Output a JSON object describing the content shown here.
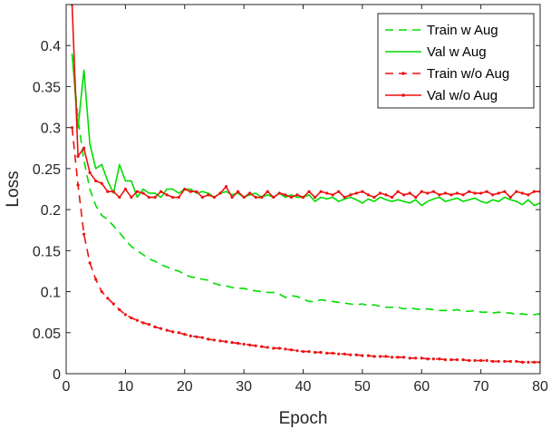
{
  "chart_data": {
    "type": "line",
    "title": "",
    "xlabel": "Epoch",
    "ylabel": "Loss",
    "xlim": [
      0,
      80
    ],
    "ylim": [
      0,
      0.45
    ],
    "xticks": [
      "0",
      "10",
      "20",
      "30",
      "40",
      "50",
      "60",
      "70",
      "80"
    ],
    "yticks": [
      "0",
      "0.05",
      "0.1",
      "0.15",
      "0.2",
      "0.25",
      "0.3",
      "0.35",
      "0.4"
    ],
    "xtick_values": [
      0,
      10,
      20,
      30,
      40,
      50,
      60,
      70,
      80
    ],
    "ytick_values": [
      0,
      0.05,
      0.1,
      0.15,
      0.2,
      0.25,
      0.3,
      0.35,
      0.4
    ],
    "grid": false,
    "legend_position": "top-right",
    "series": [
      {
        "name": "Train w Aug",
        "color": "#00dd00",
        "style": "dashed",
        "marker": "none",
        "x": [
          1,
          2,
          3,
          4,
          5,
          6,
          7,
          8,
          9,
          10,
          11,
          12,
          13,
          14,
          15,
          16,
          17,
          18,
          19,
          20,
          21,
          22,
          23,
          24,
          25,
          26,
          27,
          28,
          29,
          30,
          31,
          32,
          33,
          34,
          35,
          36,
          37,
          38,
          39,
          40,
          41,
          42,
          43,
          44,
          45,
          46,
          47,
          48,
          49,
          50,
          51,
          52,
          53,
          54,
          55,
          56,
          57,
          58,
          59,
          60,
          61,
          62,
          63,
          64,
          65,
          66,
          67,
          68,
          69,
          70,
          71,
          72,
          73,
          74,
          75,
          76,
          77,
          78,
          79,
          80
        ],
        "y": [
          0.39,
          0.31,
          0.26,
          0.225,
          0.205,
          0.193,
          0.188,
          0.18,
          0.172,
          0.163,
          0.155,
          0.15,
          0.145,
          0.14,
          0.137,
          0.133,
          0.13,
          0.127,
          0.125,
          0.121,
          0.118,
          0.117,
          0.115,
          0.114,
          0.11,
          0.108,
          0.107,
          0.105,
          0.104,
          0.104,
          0.102,
          0.101,
          0.1,
          0.099,
          0.099,
          0.097,
          0.093,
          0.095,
          0.094,
          0.091,
          0.088,
          0.088,
          0.09,
          0.089,
          0.088,
          0.087,
          0.086,
          0.085,
          0.084,
          0.085,
          0.083,
          0.084,
          0.082,
          0.081,
          0.081,
          0.081,
          0.079,
          0.08,
          0.079,
          0.078,
          0.079,
          0.078,
          0.077,
          0.077,
          0.077,
          0.078,
          0.076,
          0.076,
          0.077,
          0.075,
          0.075,
          0.074,
          0.075,
          0.074,
          0.074,
          0.072,
          0.073,
          0.072,
          0.072,
          0.073
        ]
      },
      {
        "name": "Val w Aug",
        "color": "#00dd00",
        "style": "solid",
        "marker": "none",
        "x": [
          1,
          2,
          3,
          4,
          5,
          6,
          7,
          8,
          9,
          10,
          11,
          12,
          13,
          14,
          15,
          16,
          17,
          18,
          19,
          20,
          21,
          22,
          23,
          24,
          25,
          26,
          27,
          28,
          29,
          30,
          31,
          32,
          33,
          34,
          35,
          36,
          37,
          38,
          39,
          40,
          41,
          42,
          43,
          44,
          45,
          46,
          47,
          48,
          49,
          50,
          51,
          52,
          53,
          54,
          55,
          56,
          57,
          58,
          59,
          60,
          61,
          62,
          63,
          64,
          65,
          66,
          67,
          68,
          69,
          70,
          71,
          72,
          73,
          74,
          75,
          76,
          77,
          78,
          79,
          80
        ],
        "y": [
          0.39,
          0.3,
          0.37,
          0.28,
          0.25,
          0.255,
          0.235,
          0.22,
          0.255,
          0.235,
          0.235,
          0.215,
          0.225,
          0.22,
          0.22,
          0.215,
          0.225,
          0.225,
          0.22,
          0.225,
          0.225,
          0.22,
          0.222,
          0.22,
          0.215,
          0.22,
          0.222,
          0.218,
          0.22,
          0.215,
          0.218,
          0.22,
          0.215,
          0.218,
          0.215,
          0.22,
          0.215,
          0.218,
          0.215,
          0.215,
          0.218,
          0.21,
          0.215,
          0.213,
          0.215,
          0.21,
          0.213,
          0.215,
          0.212,
          0.208,
          0.213,
          0.21,
          0.215,
          0.212,
          0.21,
          0.212,
          0.21,
          0.208,
          0.212,
          0.205,
          0.21,
          0.213,
          0.215,
          0.21,
          0.212,
          0.214,
          0.21,
          0.212,
          0.214,
          0.21,
          0.208,
          0.212,
          0.21,
          0.215,
          0.212,
          0.21,
          0.206,
          0.212,
          0.205,
          0.208
        ]
      },
      {
        "name": "Train w/o Aug",
        "color": "#ee1111",
        "style": "dashed",
        "marker": "dot",
        "x": [
          1,
          2,
          3,
          4,
          5,
          6,
          7,
          8,
          9,
          10,
          11,
          12,
          13,
          14,
          15,
          16,
          17,
          18,
          19,
          20,
          21,
          22,
          23,
          24,
          25,
          26,
          27,
          28,
          29,
          30,
          31,
          32,
          33,
          34,
          35,
          36,
          37,
          38,
          39,
          40,
          41,
          42,
          43,
          44,
          45,
          46,
          47,
          48,
          49,
          50,
          51,
          52,
          53,
          54,
          55,
          56,
          57,
          58,
          59,
          60,
          61,
          62,
          63,
          64,
          65,
          66,
          67,
          68,
          69,
          70,
          71,
          72,
          73,
          74,
          75,
          76,
          77,
          78,
          79,
          80
        ],
        "y": [
          0.3,
          0.23,
          0.17,
          0.135,
          0.115,
          0.1,
          0.092,
          0.085,
          0.078,
          0.072,
          0.068,
          0.065,
          0.062,
          0.06,
          0.057,
          0.055,
          0.053,
          0.051,
          0.05,
          0.048,
          0.046,
          0.045,
          0.044,
          0.042,
          0.041,
          0.04,
          0.039,
          0.038,
          0.037,
          0.036,
          0.035,
          0.034,
          0.033,
          0.032,
          0.031,
          0.031,
          0.03,
          0.029,
          0.028,
          0.027,
          0.027,
          0.026,
          0.026,
          0.025,
          0.025,
          0.024,
          0.024,
          0.023,
          0.023,
          0.022,
          0.022,
          0.021,
          0.021,
          0.021,
          0.02,
          0.02,
          0.02,
          0.019,
          0.019,
          0.019,
          0.018,
          0.018,
          0.018,
          0.017,
          0.017,
          0.017,
          0.017,
          0.016,
          0.016,
          0.016,
          0.016,
          0.015,
          0.015,
          0.015,
          0.015,
          0.015,
          0.014,
          0.014,
          0.014,
          0.014
        ]
      },
      {
        "name": "Val w/o Aug",
        "color": "#ee1111",
        "style": "solid",
        "marker": "dot",
        "x": [
          1,
          2,
          3,
          4,
          5,
          6,
          7,
          8,
          9,
          10,
          11,
          12,
          13,
          14,
          15,
          16,
          17,
          18,
          19,
          20,
          21,
          22,
          23,
          24,
          25,
          26,
          27,
          28,
          29,
          30,
          31,
          32,
          33,
          34,
          35,
          36,
          37,
          38,
          39,
          40,
          41,
          42,
          43,
          44,
          45,
          46,
          47,
          48,
          49,
          50,
          51,
          52,
          53,
          54,
          55,
          56,
          57,
          58,
          59,
          60,
          61,
          62,
          63,
          64,
          65,
          66,
          67,
          68,
          69,
          70,
          71,
          72,
          73,
          74,
          75,
          76,
          77,
          78,
          79,
          80
        ],
        "y": [
          0.45,
          0.265,
          0.275,
          0.245,
          0.235,
          0.232,
          0.222,
          0.222,
          0.215,
          0.225,
          0.215,
          0.222,
          0.22,
          0.215,
          0.215,
          0.222,
          0.218,
          0.215,
          0.215,
          0.225,
          0.222,
          0.222,
          0.215,
          0.218,
          0.215,
          0.22,
          0.228,
          0.215,
          0.222,
          0.215,
          0.22,
          0.215,
          0.215,
          0.222,
          0.215,
          0.22,
          0.218,
          0.215,
          0.218,
          0.215,
          0.222,
          0.215,
          0.222,
          0.22,
          0.218,
          0.222,
          0.215,
          0.218,
          0.22,
          0.222,
          0.218,
          0.215,
          0.22,
          0.218,
          0.215,
          0.222,
          0.218,
          0.22,
          0.215,
          0.222,
          0.22,
          0.222,
          0.218,
          0.22,
          0.218,
          0.22,
          0.218,
          0.222,
          0.22,
          0.22,
          0.222,
          0.218,
          0.22,
          0.222,
          0.215,
          0.222,
          0.22,
          0.218,
          0.222,
          0.222
        ]
      }
    ]
  }
}
